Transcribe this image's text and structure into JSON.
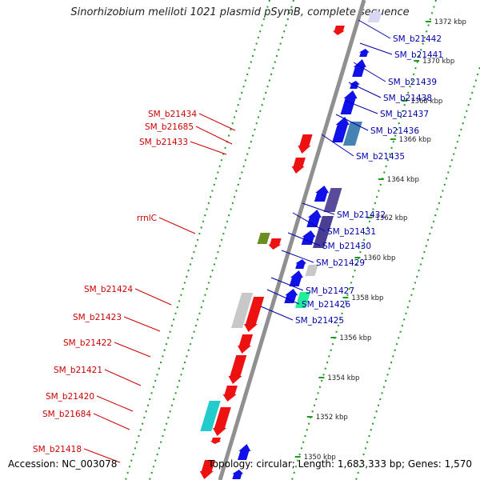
{
  "title": "Sinorhizobium meliloti 1021 plasmid pSymB, complete sequence",
  "footer": {
    "accession": "Accession: NC_003078",
    "summary": "Topology: circular; Length: 1,683,333 bp; Genes: 1,570"
  },
  "colors": {
    "forward_gene": "#1010e8",
    "reverse_gene": "#ee1111",
    "forward_label": "#0000aa",
    "reverse_label": "#cc0000",
    "backbone": "#909090",
    "tick_green": "#229922"
  },
  "ticks": [
    "1372 kbp",
    "1370 kbp",
    "1368 kbp",
    "1366 kbp",
    "1364 kbp",
    "1362 kbp",
    "1360 kbp",
    "1358 kbp",
    "1356 kbp",
    "1354 kbp",
    "1352 kbp",
    "1350 kbp"
  ],
  "forward_labels": [
    "SM_b21442",
    "SM_b21441",
    "SM_b21439",
    "SM_b21438",
    "SM_b21437",
    "SM_b21436",
    "SM_b21435",
    "SM_b21432",
    "SM_b21431",
    "SM_b21430",
    "SM_b21429",
    "SM_b21427",
    "SM_b21426",
    "SM_b21425"
  ],
  "reverse_labels": [
    "SM_b21434",
    "SM_b21685",
    "SM_b21433",
    "rrnlC",
    "SM_b21424",
    "SM_b21423",
    "SM_b21422",
    "SM_b21421",
    "SM_b21420",
    "SM_b21684",
    "SM_b21418"
  ]
}
